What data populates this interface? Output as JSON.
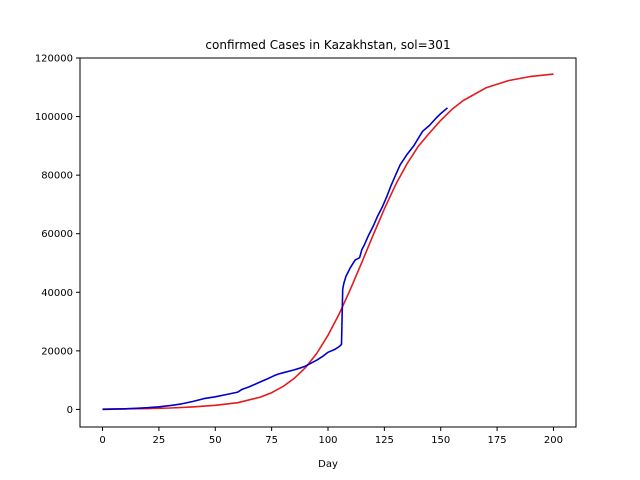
{
  "chart_data": {
    "type": "line",
    "title": "confirmed Cases in Kazakhstan, sol=301",
    "xlabel": "Day",
    "ylabel": "",
    "xlim": [
      -10,
      210
    ],
    "ylim": [
      -6000,
      120000
    ],
    "xticks": [
      0,
      25,
      50,
      75,
      100,
      125,
      150,
      175,
      200
    ],
    "yticks": [
      0,
      20000,
      40000,
      60000,
      80000,
      100000,
      120000
    ],
    "grid": false,
    "legend": "none",
    "series": [
      {
        "color": "#e41a1c",
        "x": [
          0,
          10,
          20,
          30,
          40,
          50,
          60,
          70,
          75,
          80,
          85,
          90,
          95,
          100,
          105,
          110,
          115,
          120,
          125,
          130,
          135,
          140,
          145,
          150,
          155,
          160,
          170,
          180,
          190,
          200
        ],
        "y": [
          100,
          180,
          300,
          500,
          850,
          1400,
          2300,
          4200,
          5700,
          7800,
          10600,
          14300,
          19100,
          25300,
          32700,
          41100,
          50200,
          59500,
          68500,
          76700,
          83800,
          89800,
          94400,
          98700,
          102500,
          105500,
          109800,
          112300,
          113700,
          114500
        ]
      },
      {
        "color": "#0000cc",
        "x": [
          0,
          5,
          10,
          15,
          20,
          25,
          30,
          35,
          40,
          45,
          50,
          55,
          60,
          62,
          65,
          68,
          70,
          73,
          76,
          78,
          80,
          85,
          88,
          90,
          92,
          95,
          98,
          100,
          103,
          105,
          106,
          106.5,
          107,
          108,
          110,
          112,
          114,
          115,
          116,
          118,
          120,
          122,
          124,
          126,
          128,
          130,
          132,
          135,
          138,
          140,
          142,
          145,
          148,
          150,
          153
        ],
        "y": [
          0,
          100,
          200,
          400,
          600,
          900,
          1300,
          1900,
          2700,
          3700,
          4300,
          5100,
          5900,
          6900,
          7700,
          8700,
          9400,
          10400,
          11500,
          12100,
          12500,
          13500,
          14200,
          14800,
          15600,
          16800,
          18300,
          19500,
          20500,
          21500,
          22200,
          41000,
          43000,
          45500,
          48500,
          51000,
          51800,
          54500,
          56000,
          59500,
          62500,
          66000,
          69000,
          72500,
          76500,
          80000,
          83500,
          87000,
          90000,
          92500,
          95000,
          97000,
          99500,
          101000,
          103000
        ]
      }
    ]
  }
}
